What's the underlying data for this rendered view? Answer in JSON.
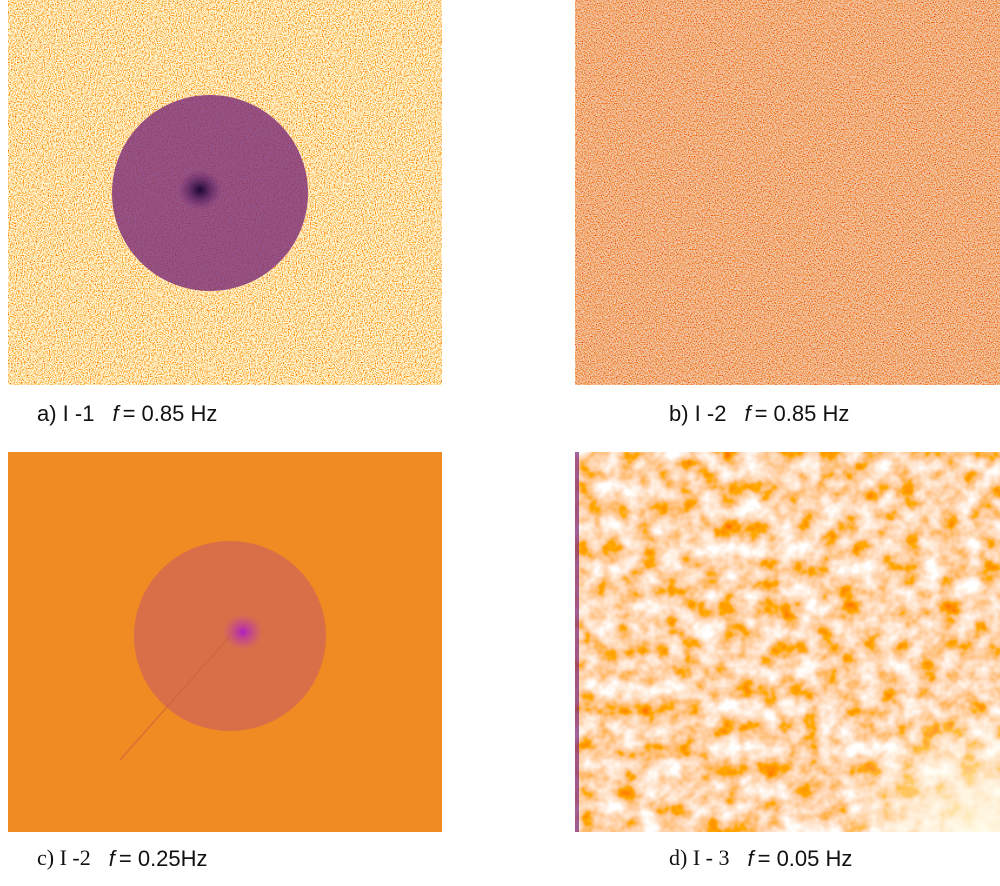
{
  "panels": [
    {
      "label": "a) I -1",
      "symbol": "f",
      "value": "= 0.85 Hz"
    },
    {
      "label": "b) I -2",
      "symbol": "f",
      "value": "= 0.85 Hz"
    },
    {
      "label": "c) I -2",
      "symbol": "f",
      "value": "= 0.25Hz"
    },
    {
      "label": "d) I - 3",
      "symbol": "f",
      "value": "= 0.05 Hz"
    }
  ]
}
